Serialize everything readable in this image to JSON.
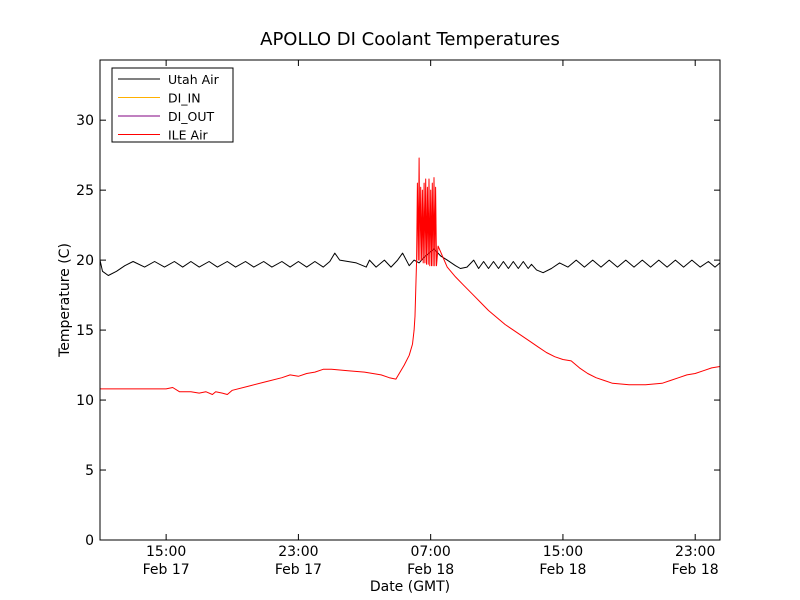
{
  "chart_data": {
    "type": "line",
    "title": "APOLLO DI Coolant Temperatures",
    "xlabel": "Date (GMT)",
    "ylabel": "Temperature (C)",
    "x_unit": "hours since Feb 17 11:00 GMT",
    "xlim": [
      0,
      37.5
    ],
    "ylim": [
      0,
      34.3
    ],
    "yticks": [
      0,
      5,
      10,
      15,
      20,
      25,
      30
    ],
    "xticks": [
      {
        "x": 4,
        "time": "15:00",
        "date": "Feb 17"
      },
      {
        "x": 12,
        "time": "23:00",
        "date": "Feb 17"
      },
      {
        "x": 20,
        "time": "07:00",
        "date": "Feb 18"
      },
      {
        "x": 28,
        "time": "15:00",
        "date": "Feb 18"
      },
      {
        "x": 36,
        "time": "23:00",
        "date": "Feb 18"
      }
    ],
    "legend_position": "top-left",
    "series": [
      {
        "name": "Utah Air",
        "color": "#000000",
        "points": [
          [
            0,
            20
          ],
          [
            0.15,
            19.2
          ],
          [
            0.5,
            18.9
          ],
          [
            1,
            19.2
          ],
          [
            1.5,
            19.6
          ],
          [
            2,
            19.9
          ],
          [
            2.7,
            19.5
          ],
          [
            3.3,
            19.9
          ],
          [
            3.9,
            19.5
          ],
          [
            4.5,
            19.9
          ],
          [
            5,
            19.5
          ],
          [
            5.5,
            19.9
          ],
          [
            6,
            19.5
          ],
          [
            6.6,
            19.9
          ],
          [
            7.1,
            19.5
          ],
          [
            7.7,
            19.9
          ],
          [
            8.2,
            19.5
          ],
          [
            8.8,
            19.9
          ],
          [
            9.3,
            19.5
          ],
          [
            9.9,
            19.9
          ],
          [
            10.4,
            19.5
          ],
          [
            11,
            19.9
          ],
          [
            11.5,
            19.5
          ],
          [
            12,
            19.9
          ],
          [
            12.5,
            19.5
          ],
          [
            13,
            19.9
          ],
          [
            13.5,
            19.5
          ],
          [
            13.9,
            19.9
          ],
          [
            14.2,
            20.5
          ],
          [
            14.5,
            20
          ],
          [
            15.5,
            19.8
          ],
          [
            16.1,
            19.5
          ],
          [
            16.3,
            20
          ],
          [
            16.7,
            19.5
          ],
          [
            17.2,
            20
          ],
          [
            17.6,
            19.5
          ],
          [
            18,
            20
          ],
          [
            18.3,
            20.5
          ],
          [
            18.7,
            19.6
          ],
          [
            19,
            20
          ],
          [
            19.3,
            19.8
          ],
          [
            19.6,
            20.2
          ],
          [
            20.2,
            20.8
          ],
          [
            20.6,
            20.3
          ],
          [
            21,
            20
          ],
          [
            21.5,
            19.6
          ],
          [
            21.8,
            19.4
          ],
          [
            22.2,
            19.5
          ],
          [
            22.6,
            20
          ],
          [
            22.9,
            19.4
          ],
          [
            23.2,
            19.9
          ],
          [
            23.5,
            19.4
          ],
          [
            23.8,
            19.9
          ],
          [
            24.1,
            19.4
          ],
          [
            24.4,
            19.9
          ],
          [
            24.7,
            19.4
          ],
          [
            25,
            19.9
          ],
          [
            25.3,
            19.4
          ],
          [
            25.6,
            19.9
          ],
          [
            25.9,
            19.4
          ],
          [
            26.1,
            19.7
          ],
          [
            26.4,
            19.3
          ],
          [
            26.8,
            19.1
          ],
          [
            27.3,
            19.4
          ],
          [
            27.8,
            19.8
          ],
          [
            28.3,
            19.5
          ],
          [
            28.8,
            20
          ],
          [
            29.3,
            19.5
          ],
          [
            29.8,
            20
          ],
          [
            30.3,
            19.5
          ],
          [
            30.8,
            20
          ],
          [
            31.3,
            19.5
          ],
          [
            31.8,
            20
          ],
          [
            32.3,
            19.5
          ],
          [
            32.8,
            20
          ],
          [
            33.3,
            19.5
          ],
          [
            33.8,
            20
          ],
          [
            34.3,
            19.5
          ],
          [
            34.8,
            20
          ],
          [
            35.3,
            19.5
          ],
          [
            35.8,
            20
          ],
          [
            36.3,
            19.5
          ],
          [
            36.8,
            19.9
          ],
          [
            37.2,
            19.5
          ],
          [
            37.5,
            19.8
          ]
        ]
      },
      {
        "name": "DI_IN",
        "color": "#ffb000",
        "points": []
      },
      {
        "name": "DI_OUT",
        "color": "#800080",
        "points": []
      },
      {
        "name": "ILE Air",
        "color": "#ff0000",
        "points": [
          [
            0,
            10.8
          ],
          [
            1,
            10.8
          ],
          [
            2,
            10.8
          ],
          [
            3,
            10.8
          ],
          [
            3.9,
            10.8
          ],
          [
            4,
            10.8
          ],
          [
            4.4,
            10.9
          ],
          [
            4.8,
            10.6
          ],
          [
            5.5,
            10.6
          ],
          [
            6,
            10.5
          ],
          [
            6.4,
            10.6
          ],
          [
            6.8,
            10.4
          ],
          [
            7,
            10.6
          ],
          [
            7.4,
            10.5
          ],
          [
            7.7,
            10.4
          ],
          [
            8,
            10.7
          ],
          [
            9,
            11
          ],
          [
            10,
            11.3
          ],
          [
            11,
            11.6
          ],
          [
            11.5,
            11.8
          ],
          [
            12,
            11.7
          ],
          [
            12.5,
            11.9
          ],
          [
            13,
            12
          ],
          [
            13.5,
            12.2
          ],
          [
            14,
            12.2
          ],
          [
            15,
            12.1
          ],
          [
            16,
            12
          ],
          [
            17,
            11.8
          ],
          [
            17.5,
            11.6
          ],
          [
            17.9,
            11.5
          ],
          [
            18.4,
            12.5
          ],
          [
            18.7,
            13.2
          ],
          [
            18.9,
            14
          ],
          [
            19,
            15
          ],
          [
            19.05,
            16
          ],
          [
            19.1,
            18
          ],
          [
            19.15,
            20
          ],
          [
            19.2,
            25.5
          ],
          [
            19.25,
            20
          ],
          [
            19.3,
            27.3
          ],
          [
            19.35,
            20
          ],
          [
            19.4,
            25.2
          ],
          [
            19.45,
            20
          ],
          [
            19.5,
            25
          ],
          [
            19.55,
            19.8
          ],
          [
            19.6,
            25.5
          ],
          [
            19.65,
            19.8
          ],
          [
            19.7,
            25.8
          ],
          [
            19.75,
            19.7
          ],
          [
            19.8,
            25.2
          ],
          [
            19.85,
            19.7
          ],
          [
            19.9,
            25.8
          ],
          [
            19.95,
            19.6
          ],
          [
            20,
            25
          ],
          [
            20.05,
            19.6
          ],
          [
            20.1,
            25.5
          ],
          [
            20.15,
            19.6
          ],
          [
            20.2,
            25.9
          ],
          [
            20.25,
            19.6
          ],
          [
            20.3,
            25.2
          ],
          [
            20.35,
            19.6
          ],
          [
            20.45,
            21
          ],
          [
            21,
            19.5
          ],
          [
            21.5,
            18.8
          ],
          [
            22,
            18.2
          ],
          [
            22.5,
            17.6
          ],
          [
            23,
            17
          ],
          [
            23.5,
            16.4
          ],
          [
            24,
            15.9
          ],
          [
            24.5,
            15.4
          ],
          [
            25,
            15
          ],
          [
            25.5,
            14.6
          ],
          [
            26,
            14.2
          ],
          [
            26.5,
            13.8
          ],
          [
            27,
            13.4
          ],
          [
            27.5,
            13.1
          ],
          [
            28,
            12.9
          ],
          [
            28.5,
            12.8
          ],
          [
            29,
            12.3
          ],
          [
            29.5,
            11.9
          ],
          [
            30,
            11.6
          ],
          [
            30.5,
            11.4
          ],
          [
            31,
            11.2
          ],
          [
            32,
            11.1
          ],
          [
            33,
            11.1
          ],
          [
            34,
            11.2
          ],
          [
            34.5,
            11.4
          ],
          [
            35,
            11.6
          ],
          [
            35.5,
            11.8
          ],
          [
            36,
            11.9
          ],
          [
            36.5,
            12.1
          ],
          [
            37,
            12.3
          ],
          [
            37.5,
            12.4
          ]
        ]
      }
    ]
  }
}
